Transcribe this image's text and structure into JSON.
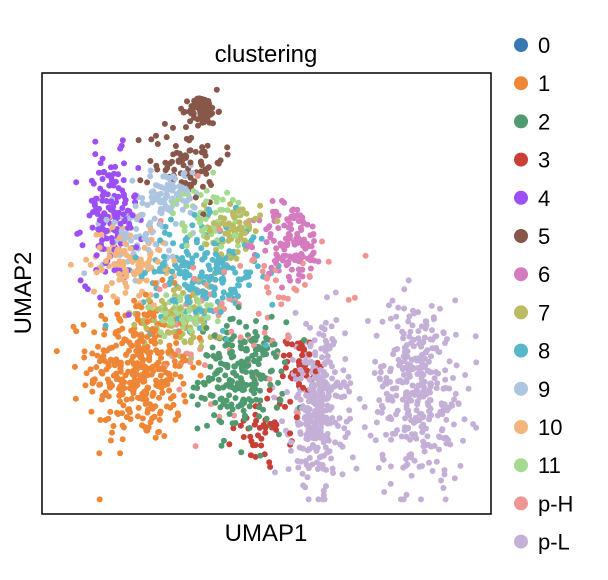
{
  "chart_data": {
    "type": "scatter",
    "title": "clustering",
    "xlabel": "UMAP1",
    "ylabel": "UMAP2",
    "xticks": [],
    "yticks": [],
    "grid": false,
    "legend_position": "right-outside",
    "xlim": [
      -0.03,
      1.03
    ],
    "ylim": [
      -0.03,
      1.03
    ],
    "series": [
      {
        "name": "0",
        "color": "#3a78b5",
        "count": 0,
        "regions": []
      },
      {
        "name": "1",
        "color": "#ef8636",
        "count": 360,
        "regions": [
          [
            0.2,
            0.32,
            0.11,
            0.16
          ]
        ]
      },
      {
        "name": "2",
        "color": "#4f9a6e",
        "count": 220,
        "regions": [
          [
            0.44,
            0.3,
            0.09,
            0.12
          ]
        ]
      },
      {
        "name": "3",
        "color": "#c93e35",
        "count": 90,
        "regions": [
          [
            0.5,
            0.18,
            0.07,
            0.08
          ],
          [
            0.58,
            0.33,
            0.03,
            0.06
          ]
        ]
      },
      {
        "name": "4",
        "color": "#9b4ff4",
        "count": 150,
        "regions": [
          [
            0.13,
            0.68,
            0.06,
            0.14
          ]
        ]
      },
      {
        "name": "5",
        "color": "#875749",
        "count": 170,
        "regions": [
          [
            0.31,
            0.82,
            0.08,
            0.09
          ],
          [
            0.35,
            0.94,
            0.03,
            0.03
          ]
        ]
      },
      {
        "name": "6",
        "color": "#d57bbf",
        "count": 120,
        "regions": [
          [
            0.56,
            0.62,
            0.07,
            0.09
          ]
        ]
      },
      {
        "name": "7",
        "color": "#bbbc61",
        "count": 150,
        "regions": [
          [
            0.3,
            0.45,
            0.1,
            0.09
          ],
          [
            0.42,
            0.66,
            0.06,
            0.06
          ]
        ]
      },
      {
        "name": "8",
        "color": "#55b7c9",
        "count": 220,
        "regions": [
          [
            0.35,
            0.55,
            0.13,
            0.11
          ]
        ]
      },
      {
        "name": "9",
        "color": "#adc5e0",
        "count": 150,
        "regions": [
          [
            0.2,
            0.65,
            0.08,
            0.1
          ],
          [
            0.28,
            0.74,
            0.05,
            0.05
          ]
        ]
      },
      {
        "name": "10",
        "color": "#f3b57c",
        "count": 110,
        "regions": [
          [
            0.17,
            0.58,
            0.08,
            0.08
          ]
        ]
      },
      {
        "name": "11",
        "color": "#a4db8f",
        "count": 130,
        "regions": [
          [
            0.37,
            0.68,
            0.08,
            0.07
          ],
          [
            0.3,
            0.45,
            0.07,
            0.05
          ]
        ]
      },
      {
        "name": "p-H",
        "color": "#ef9593",
        "count": 90,
        "regions": [
          [
            0.45,
            0.45,
            0.18,
            0.22
          ]
        ]
      },
      {
        "name": "p-L",
        "color": "#c4b0d6",
        "count": 650,
        "regions": [
          [
            0.86,
            0.27,
            0.1,
            0.2
          ],
          [
            0.62,
            0.23,
            0.06,
            0.17
          ]
        ]
      }
    ]
  }
}
